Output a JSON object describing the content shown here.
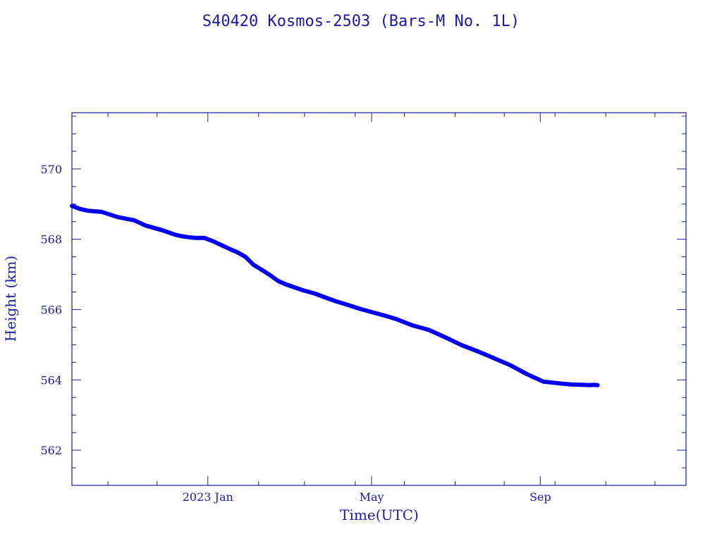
{
  "chart_data": {
    "type": "line",
    "title": "S40420 Kosmos-2503  (Bars-M No. 1L)",
    "xlabel": "Time(UTC)",
    "ylabel": "Height (km)",
    "ylim": [
      561,
      571.6
    ],
    "xlim_days": [
      -83,
      292
    ],
    "x_ticks": [
      {
        "label": "2023 Jan",
        "day": 0
      },
      {
        "label": "May",
        "day": 100
      },
      {
        "label": "Sep",
        "day": 203
      }
    ],
    "y_ticks": [
      {
        "label": "562",
        "value": 562
      },
      {
        "label": "564",
        "value": 564
      },
      {
        "label": "566",
        "value": 566
      },
      {
        "label": "568",
        "value": 568
      },
      {
        "label": "570",
        "value": 570
      }
    ],
    "series": [
      {
        "name": "Height",
        "x_days": [
          -83,
          -78,
          -73,
          -65,
          -55,
          -45,
          -38,
          -28,
          -20,
          -15,
          -12,
          -10,
          -7,
          -2,
          0,
          3,
          8,
          13,
          18,
          23,
          28,
          33,
          38,
          43,
          48,
          53,
          58,
          65,
          72,
          78,
          85,
          93,
          100,
          108,
          115,
          125,
          135,
          145,
          155,
          165,
          175,
          185,
          195,
          205,
          215,
          222,
          228,
          233,
          236,
          238
        ],
        "y": [
          568.95,
          568.86,
          568.81,
          568.78,
          568.63,
          568.54,
          568.39,
          568.26,
          568.13,
          568.08,
          568.06,
          568.05,
          568.04,
          568.04,
          568.0,
          567.95,
          567.84,
          567.73,
          567.63,
          567.5,
          567.27,
          567.13,
          566.98,
          566.81,
          566.71,
          566.63,
          566.55,
          566.46,
          566.34,
          566.24,
          566.14,
          566.02,
          565.93,
          565.83,
          565.73,
          565.55,
          565.42,
          565.21,
          564.99,
          564.81,
          564.61,
          564.41,
          564.16,
          563.95,
          563.9,
          563.87,
          563.86,
          563.85,
          563.86,
          563.85
        ]
      }
    ]
  }
}
